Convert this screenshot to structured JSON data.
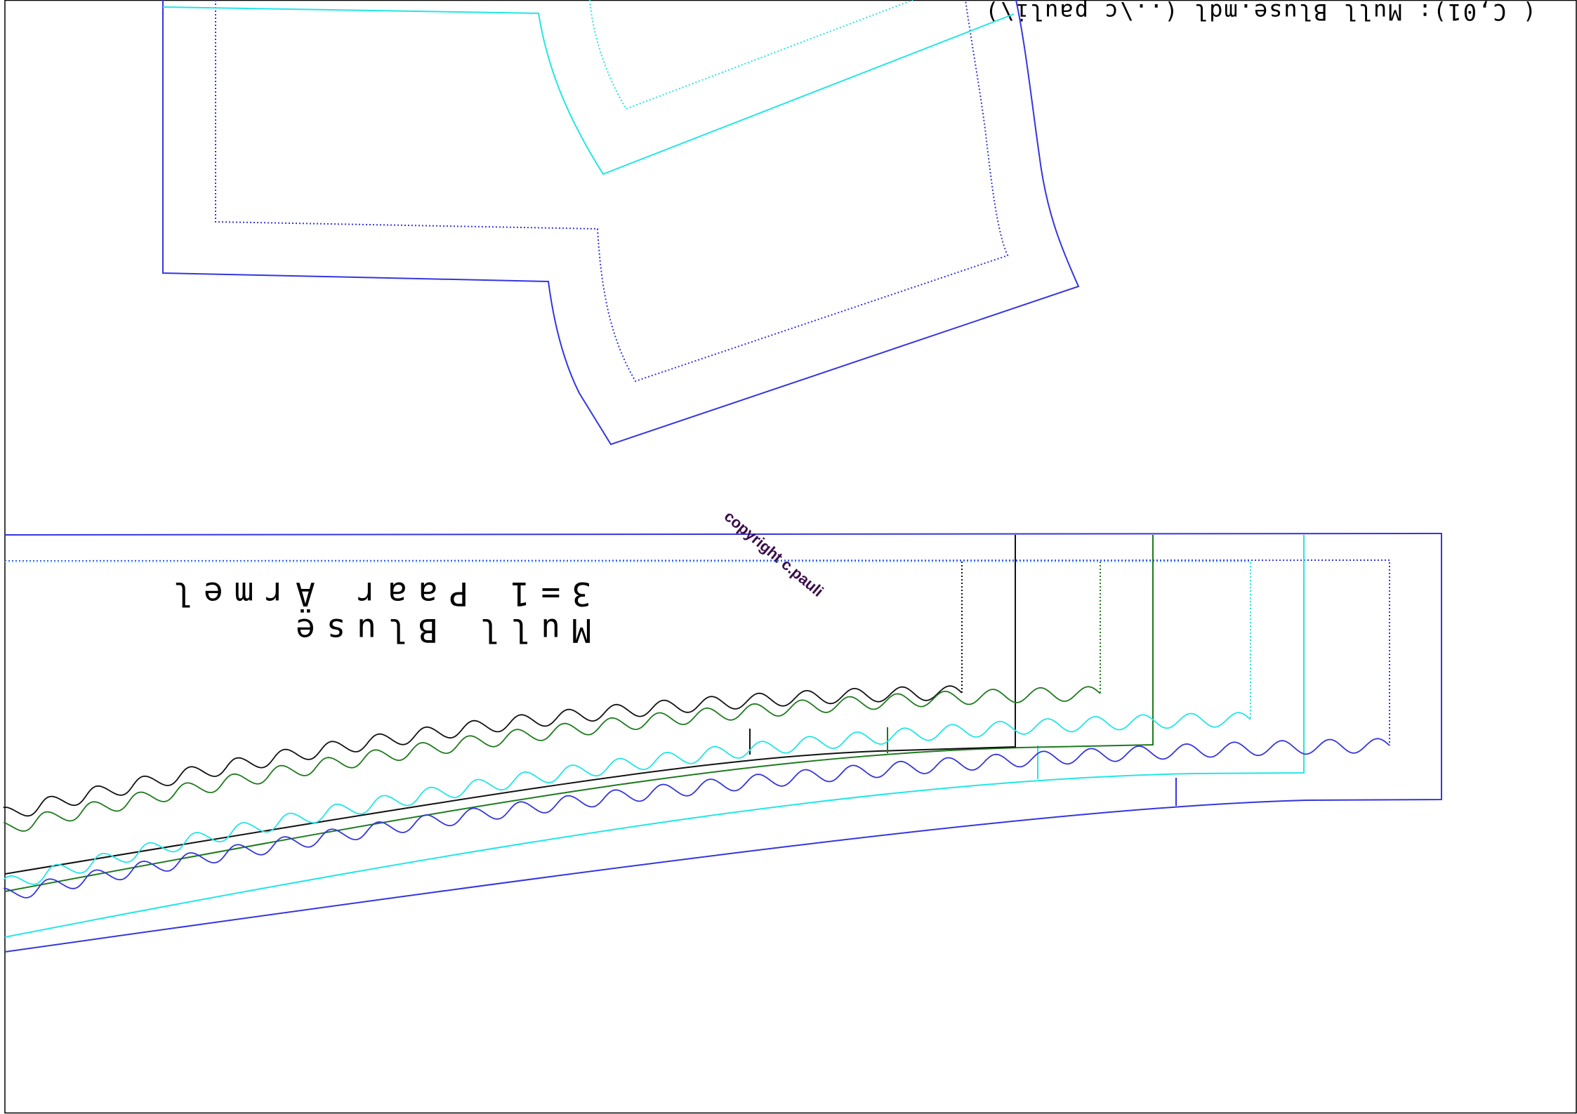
{
  "header_text": "( C,01): Mull Bluse.mdl (..\\c pauli\\)",
  "piece_title_line1": "Mull Bluse",
  "piece_title_line2": "3=1 Paar Ärmel",
  "watermark": "copyright c.pauli",
  "colors": {
    "blue": "#3535e0",
    "cyan": "#22e6e6",
    "green": "#1e7a1e",
    "black": "#111111",
    "watermark": "#3b0d4a",
    "frame": "#000000"
  }
}
